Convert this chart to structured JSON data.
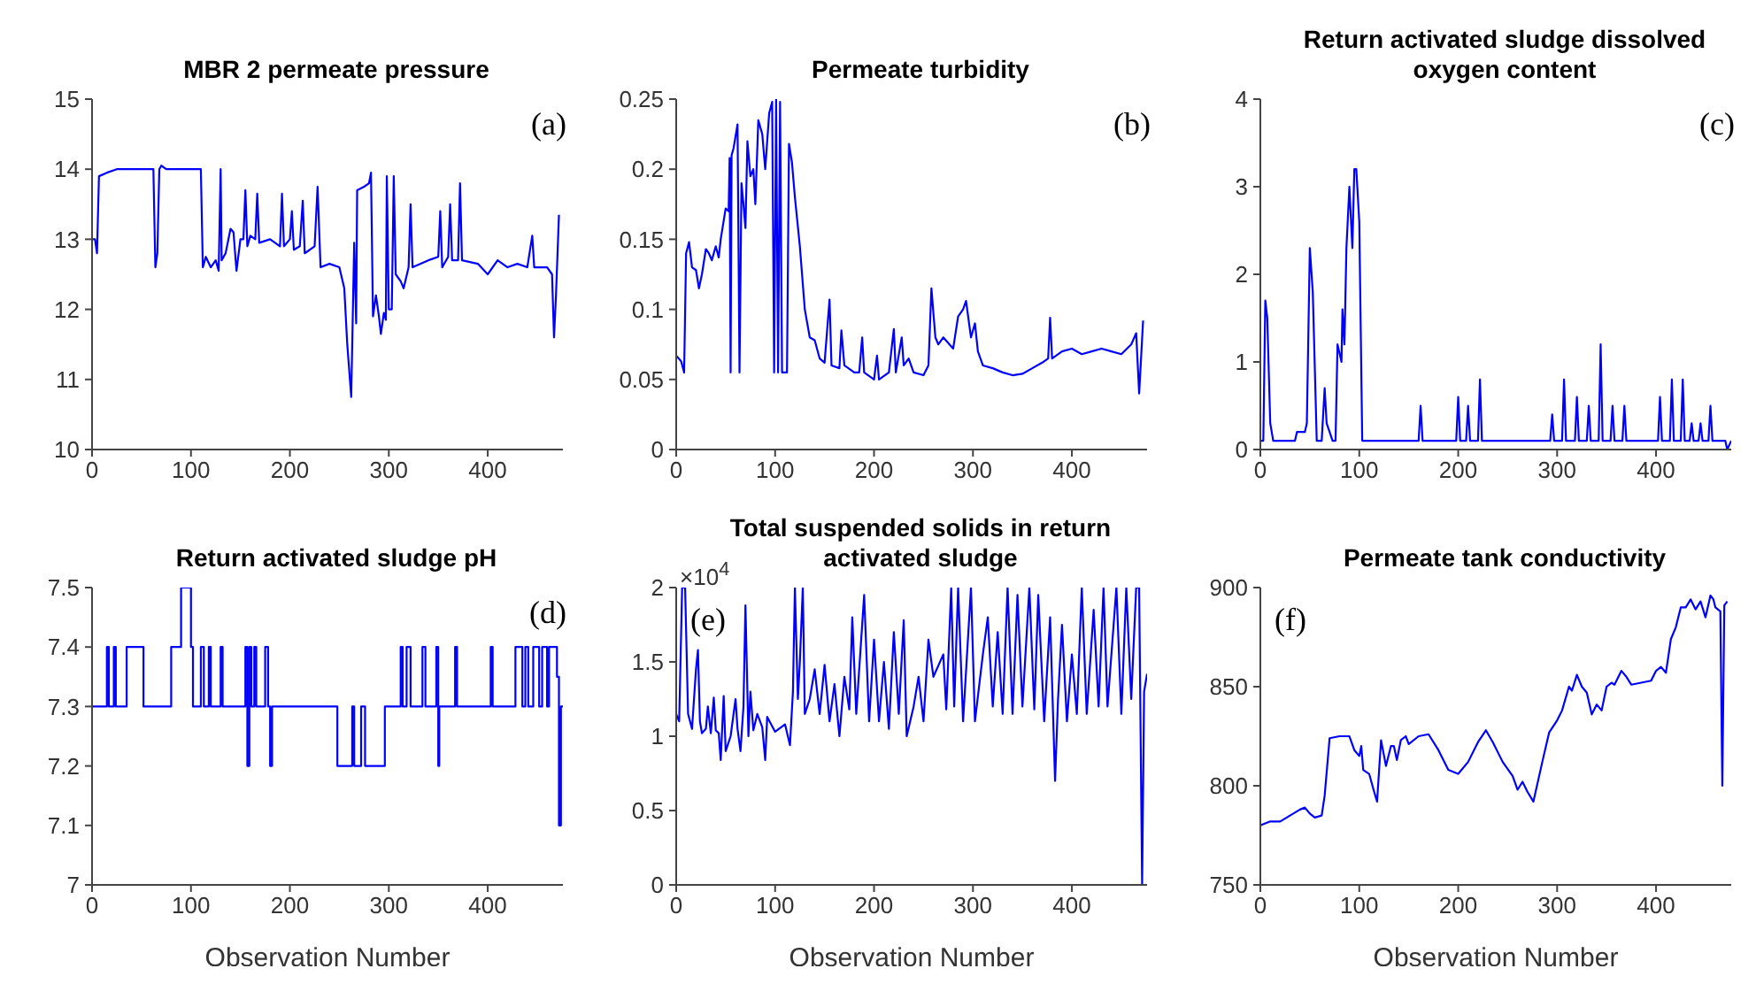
{
  "chart_data": [
    {
      "type": "line",
      "title": "MBR 2 permeate pressure",
      "annotations": [
        "(a)"
      ],
      "xlim": [
        0,
        476
      ],
      "xticks": [
        0,
        100,
        200,
        300,
        400
      ],
      "ylim": [
        10,
        15
      ],
      "yticks": [
        10,
        11,
        12,
        13,
        14,
        15
      ],
      "grid": false,
      "series": [
        {
          "color": "#0000ff",
          "x": [
            0,
            3,
            5,
            7,
            15,
            25,
            62,
            64,
            66,
            68,
            70,
            75,
            110,
            112,
            115,
            120,
            125,
            128,
            130,
            131,
            135,
            140,
            143,
            146,
            150,
            153,
            155,
            157,
            160,
            165,
            167,
            169,
            180,
            190,
            192,
            194,
            200,
            202,
            204,
            210,
            213,
            215,
            225,
            228,
            231,
            240,
            250,
            255,
            258,
            262,
            265,
            267,
            268,
            275,
            280,
            282,
            284,
            287,
            290,
            292,
            295,
            297,
            298,
            300,
            303,
            305,
            307,
            312,
            315,
            320,
            322,
            324,
            340,
            350,
            352,
            354,
            360,
            362,
            364,
            370,
            372,
            374,
            390,
            400,
            410,
            420,
            430,
            440,
            445,
            447,
            460,
            465,
            467,
            469,
            472
          ],
          "values": [
            13,
            13,
            12.8,
            13.9,
            13.95,
            14,
            14,
            12.6,
            12.8,
            14,
            14.05,
            14,
            14,
            12.6,
            12.75,
            12.6,
            12.7,
            12.55,
            14,
            12.7,
            12.8,
            13.15,
            13.1,
            12.55,
            13,
            13,
            13.7,
            12.9,
            13.05,
            13,
            13.65,
            12.95,
            13,
            12.9,
            13.65,
            12.9,
            13,
            13.4,
            12.85,
            12.9,
            13.55,
            12.8,
            12.9,
            13.75,
            12.6,
            12.65,
            12.6,
            12.3,
            11.5,
            10.75,
            12.95,
            11.8,
            13.7,
            13.75,
            13.8,
            13.95,
            11.9,
            12.2,
            11.9,
            11.65,
            11.95,
            11.85,
            13.9,
            12,
            12,
            13.9,
            12.5,
            12.4,
            12.3,
            12.6,
            13.5,
            12.6,
            12.7,
            12.75,
            13.4,
            12.6,
            12.75,
            13.5,
            12.7,
            12.7,
            13.8,
            12.7,
            12.65,
            12.5,
            12.7,
            12.6,
            12.65,
            12.6,
            13.05,
            12.6,
            12.6,
            12.5,
            11.6,
            12.2,
            13.35
          ]
        }
      ]
    },
    {
      "type": "line",
      "title": "Permeate turbidity",
      "annotations": [
        "(b)"
      ],
      "xlim": [
        0,
        476
      ],
      "xticks": [
        0,
        100,
        200,
        300,
        400
      ],
      "ylim": [
        0,
        0.25
      ],
      "yticks": [
        0,
        0.05,
        0.1,
        0.15,
        0.2,
        0.25
      ],
      "grid": false,
      "series": [
        {
          "color": "#0000ff",
          "x": [
            0,
            5,
            8,
            10,
            13,
            16,
            20,
            23,
            26,
            30,
            33,
            36,
            40,
            43,
            45,
            50,
            53,
            54,
            55,
            56,
            58,
            62,
            64,
            66,
            68,
            70,
            72,
            75,
            78,
            80,
            83,
            87,
            90,
            94,
            97,
            99,
            101,
            103,
            105,
            107,
            112,
            114,
            117,
            120,
            125,
            130,
            135,
            140,
            145,
            150,
            155,
            157,
            165,
            167,
            170,
            180,
            185,
            188,
            190,
            200,
            203,
            205,
            215,
            220,
            222,
            228,
            230,
            235,
            240,
            250,
            255,
            258,
            262,
            265,
            270,
            280,
            285,
            290,
            293,
            298,
            302,
            305,
            310,
            320,
            330,
            340,
            350,
            360,
            370,
            376,
            378,
            380,
            390,
            400,
            410,
            420,
            430,
            440,
            450,
            460,
            465,
            468,
            472
          ],
          "values": [
            0.067,
            0.063,
            0.055,
            0.14,
            0.148,
            0.13,
            0.128,
            0.115,
            0.125,
            0.143,
            0.14,
            0.135,
            0.145,
            0.137,
            0.15,
            0.172,
            0.17,
            0.208,
            0.055,
            0.21,
            0.215,
            0.232,
            0.055,
            0.19,
            0.175,
            0.158,
            0.22,
            0.195,
            0.2,
            0.175,
            0.235,
            0.225,
            0.2,
            0.24,
            0.248,
            0.055,
            0.25,
            0.055,
            0.248,
            0.055,
            0.055,
            0.218,
            0.205,
            0.18,
            0.145,
            0.1,
            0.08,
            0.078,
            0.065,
            0.062,
            0.107,
            0.06,
            0.058,
            0.085,
            0.06,
            0.055,
            0.055,
            0.08,
            0.055,
            0.05,
            0.067,
            0.05,
            0.055,
            0.086,
            0.055,
            0.08,
            0.06,
            0.065,
            0.055,
            0.053,
            0.06,
            0.115,
            0.08,
            0.075,
            0.08,
            0.072,
            0.095,
            0.1,
            0.106,
            0.08,
            0.09,
            0.07,
            0.06,
            0.058,
            0.055,
            0.053,
            0.054,
            0.058,
            0.062,
            0.065,
            0.094,
            0.065,
            0.07,
            0.072,
            0.068,
            0.07,
            0.072,
            0.07,
            0.068,
            0.075,
            0.083,
            0.04,
            0.092
          ]
        }
      ]
    },
    {
      "type": "line",
      "title": "Return activated sludge dissolved oxygen content",
      "annotations": [
        "(c)"
      ],
      "xlim": [
        0,
        476
      ],
      "xticks": [
        0,
        100,
        200,
        300,
        400
      ],
      "ylim": [
        0,
        4
      ],
      "yticks": [
        0,
        1,
        2,
        3,
        4
      ],
      "grid": false,
      "series": [
        {
          "color": "#0000ff",
          "x": [
            0,
            3,
            5,
            7,
            10,
            13,
            35,
            37,
            45,
            47,
            50,
            53,
            57,
            62,
            65,
            67,
            70,
            73,
            76,
            78,
            80,
            82,
            83,
            85,
            87,
            90,
            93,
            95,
            97,
            100,
            103,
            160,
            162,
            164,
            198,
            200,
            202,
            208,
            210,
            212,
            220,
            222,
            224,
            293,
            295,
            297,
            305,
            307,
            309,
            318,
            320,
            322,
            330,
            332,
            334,
            342,
            344,
            346,
            354,
            356,
            358,
            366,
            368,
            370,
            402,
            404,
            406,
            414,
            416,
            418,
            425,
            427,
            429,
            434,
            436,
            438,
            443,
            445,
            447,
            453,
            455,
            457,
            470,
            472,
            476
          ],
          "values": [
            0.1,
            0.1,
            1.7,
            1.5,
            0.3,
            0.1,
            0.1,
            0.2,
            0.2,
            0.3,
            2.3,
            1.8,
            0.1,
            0.1,
            0.7,
            0.3,
            0.2,
            0.1,
            0.1,
            1.2,
            1.1,
            1,
            1.6,
            1.2,
            2.3,
            3,
            2.3,
            3.2,
            3.2,
            2.6,
            0.1,
            0.1,
            0.5,
            0.1,
            0.1,
            0.6,
            0.1,
            0.1,
            0.5,
            0.1,
            0.1,
            0.8,
            0.1,
            0.1,
            0.4,
            0.1,
            0.1,
            0.8,
            0.1,
            0.1,
            0.6,
            0.1,
            0.1,
            0.5,
            0.1,
            0.1,
            1.2,
            0.1,
            0.1,
            0.5,
            0.1,
            0.1,
            0.5,
            0.1,
            0.1,
            0.6,
            0.1,
            0.1,
            0.8,
            0.1,
            0.1,
            0.8,
            0.1,
            0.1,
            0.3,
            0.1,
            0.1,
            0.3,
            0.1,
            0.1,
            0.5,
            0.1,
            0.1,
            0,
            0.1
          ]
        }
      ]
    },
    {
      "type": "step",
      "title": "Return activated sludge pH",
      "xlabel": "Observation Number",
      "annotations": [
        "(d)"
      ],
      "xlim": [
        0,
        476
      ],
      "xticks": [
        0,
        100,
        200,
        300,
        400
      ],
      "ylim": [
        7,
        7.5
      ],
      "yticks": [
        7,
        7.1,
        7.2,
        7.3,
        7.4,
        7.5
      ],
      "grid": false,
      "series": [
        {
          "color": "#0000ff",
          "x": [
            0,
            15,
            17,
            22,
            24,
            35,
            52,
            80,
            90,
            100,
            102,
            110,
            113,
            118,
            120,
            130,
            132,
            155,
            157,
            159,
            161,
            164,
            166,
            175,
            178,
            180,
            182,
            248,
            263,
            265,
            272,
            276,
            296,
            312,
            314,
            318,
            322,
            334,
            337,
            348,
            350,
            351,
            367,
            369,
            403,
            405,
            428,
            435,
            438,
            441,
            446,
            452,
            455,
            460,
            462,
            470,
            472,
            474,
            476
          ],
          "values": [
            7.3,
            7.4,
            7.3,
            7.4,
            7.3,
            7.4,
            7.3,
            7.4,
            7.5,
            7.4,
            7.3,
            7.4,
            7.3,
            7.4,
            7.3,
            7.4,
            7.3,
            7.4,
            7.2,
            7.4,
            7.3,
            7.4,
            7.3,
            7.4,
            7.3,
            7.2,
            7.3,
            7.2,
            7.3,
            7.2,
            7.3,
            7.2,
            7.3,
            7.4,
            7.3,
            7.4,
            7.3,
            7.4,
            7.3,
            7.4,
            7.2,
            7.3,
            7.4,
            7.3,
            7.4,
            7.3,
            7.4,
            7.3,
            7.4,
            7.3,
            7.4,
            7.3,
            7.4,
            7.3,
            7.4,
            7.35,
            7.1,
            7.3,
            7.3
          ]
        }
      ]
    },
    {
      "type": "line",
      "title": "Total suspended solids in return activated sludge",
      "xlabel": "Observation Number",
      "annotations": [
        "(e)",
        "×10$^{4}$"
      ],
      "xlim": [
        0,
        476
      ],
      "xticks": [
        0,
        100,
        200,
        300,
        400
      ],
      "ylim": [
        0,
        2
      ],
      "yticks": [
        0,
        0.5,
        1,
        1.5,
        2
      ],
      "grid": false,
      "series": [
        {
          "color": "#0000ff",
          "x": [
            0,
            3,
            6,
            9,
            12,
            16,
            20,
            22,
            24,
            26,
            30,
            32,
            35,
            38,
            40,
            43,
            45,
            48,
            50,
            55,
            60,
            62,
            65,
            68,
            70,
            73,
            75,
            78,
            82,
            87,
            90,
            92,
            100,
            110,
            115,
            118,
            120,
            123,
            125,
            128,
            130,
            135,
            140,
            145,
            150,
            155,
            160,
            165,
            170,
            175,
            178,
            182,
            190,
            195,
            200,
            205,
            210,
            215,
            220,
            225,
            230,
            233,
            240,
            245,
            250,
            255,
            260,
            270,
            273,
            278,
            281,
            285,
            290,
            298,
            302,
            310,
            315,
            320,
            325,
            330,
            335,
            340,
            345,
            350,
            357,
            362,
            366,
            372,
            378,
            383,
            386,
            390,
            395,
            400,
            405,
            410,
            415,
            422,
            427,
            432,
            436,
            445,
            450,
            455,
            460,
            465,
            468,
            471,
            473,
            476
          ],
          "values": [
            1.15,
            1.1,
            2,
            2,
            1.15,
            1.05,
            1.45,
            1.58,
            1.1,
            1.02,
            1.05,
            1.2,
            1.02,
            1.26,
            1.04,
            1.02,
            0.84,
            1.27,
            0.9,
            1,
            1.25,
            1.05,
            0.9,
            1.2,
            1.88,
            1,
            1.3,
            1.04,
            1.15,
            1.06,
            0.84,
            1.13,
            1.03,
            1.08,
            0.94,
            1.3,
            2,
            1.25,
            1.5,
            2,
            1.15,
            1.25,
            1.45,
            1.15,
            1.48,
            1.1,
            1.35,
            1,
            1.4,
            1.18,
            1.8,
            1.15,
            1.95,
            1.1,
            1.65,
            1.1,
            1.5,
            1.05,
            1.7,
            1.15,
            1.78,
            1,
            1.2,
            1.4,
            1.1,
            1.65,
            1.4,
            1.55,
            1.18,
            2,
            1.2,
            2,
            1.1,
            2,
            1.1,
            1.55,
            1.8,
            1.2,
            1.7,
            1.15,
            2,
            1.15,
            1.95,
            1.2,
            2,
            1.18,
            1.95,
            1.1,
            1.8,
            0.7,
            1.25,
            1.75,
            1.1,
            1.55,
            1.15,
            2,
            1.15,
            1.85,
            1.2,
            2,
            1.2,
            2,
            1.15,
            2,
            1.25,
            2,
            2,
            0,
            1.3,
            1.42
          ]
        }
      ]
    },
    {
      "type": "line",
      "title": "Permeate tank conductivity",
      "xlabel": "Observation Number",
      "annotations": [
        "(f)"
      ],
      "xlim": [
        0,
        476
      ],
      "xticks": [
        0,
        100,
        200,
        300,
        400
      ],
      "ylim": [
        750,
        900
      ],
      "yticks": [
        750,
        800,
        850,
        900
      ],
      "grid": false,
      "series": [
        {
          "color": "#0000ff",
          "x": [
            0,
            10,
            20,
            30,
            40,
            45,
            50,
            55,
            62,
            65,
            70,
            80,
            90,
            95,
            100,
            102,
            104,
            110,
            115,
            118,
            122,
            127,
            132,
            135,
            138,
            142,
            147,
            150,
            160,
            170,
            180,
            190,
            200,
            210,
            220,
            228,
            235,
            245,
            255,
            260,
            265,
            270,
            276,
            285,
            292,
            300,
            305,
            312,
            315,
            320,
            325,
            330,
            335,
            340,
            345,
            350,
            355,
            358,
            365,
            370,
            375,
            385,
            395,
            400,
            405,
            410,
            415,
            420,
            425,
            430,
            435,
            440,
            445,
            450,
            455,
            458,
            460,
            465,
            467,
            469,
            472
          ],
          "values": [
            780,
            782,
            782,
            785,
            788,
            789,
            786,
            784,
            785,
            795,
            824,
            825,
            825,
            818,
            815,
            820,
            808,
            806,
            797,
            792,
            823,
            810,
            820,
            820,
            813,
            823,
            825,
            821,
            825,
            826,
            818,
            808,
            806,
            812,
            822,
            828,
            822,
            812,
            805,
            798,
            802,
            797,
            792,
            812,
            827,
            833,
            838,
            850,
            848,
            856,
            850,
            847,
            836,
            841,
            838,
            850,
            852,
            851,
            858,
            855,
            851,
            852,
            853,
            858,
            860,
            857,
            874,
            880,
            890,
            890,
            894,
            889,
            893,
            885,
            896,
            894,
            890,
            888,
            800,
            891,
            893
          ]
        }
      ]
    }
  ]
}
